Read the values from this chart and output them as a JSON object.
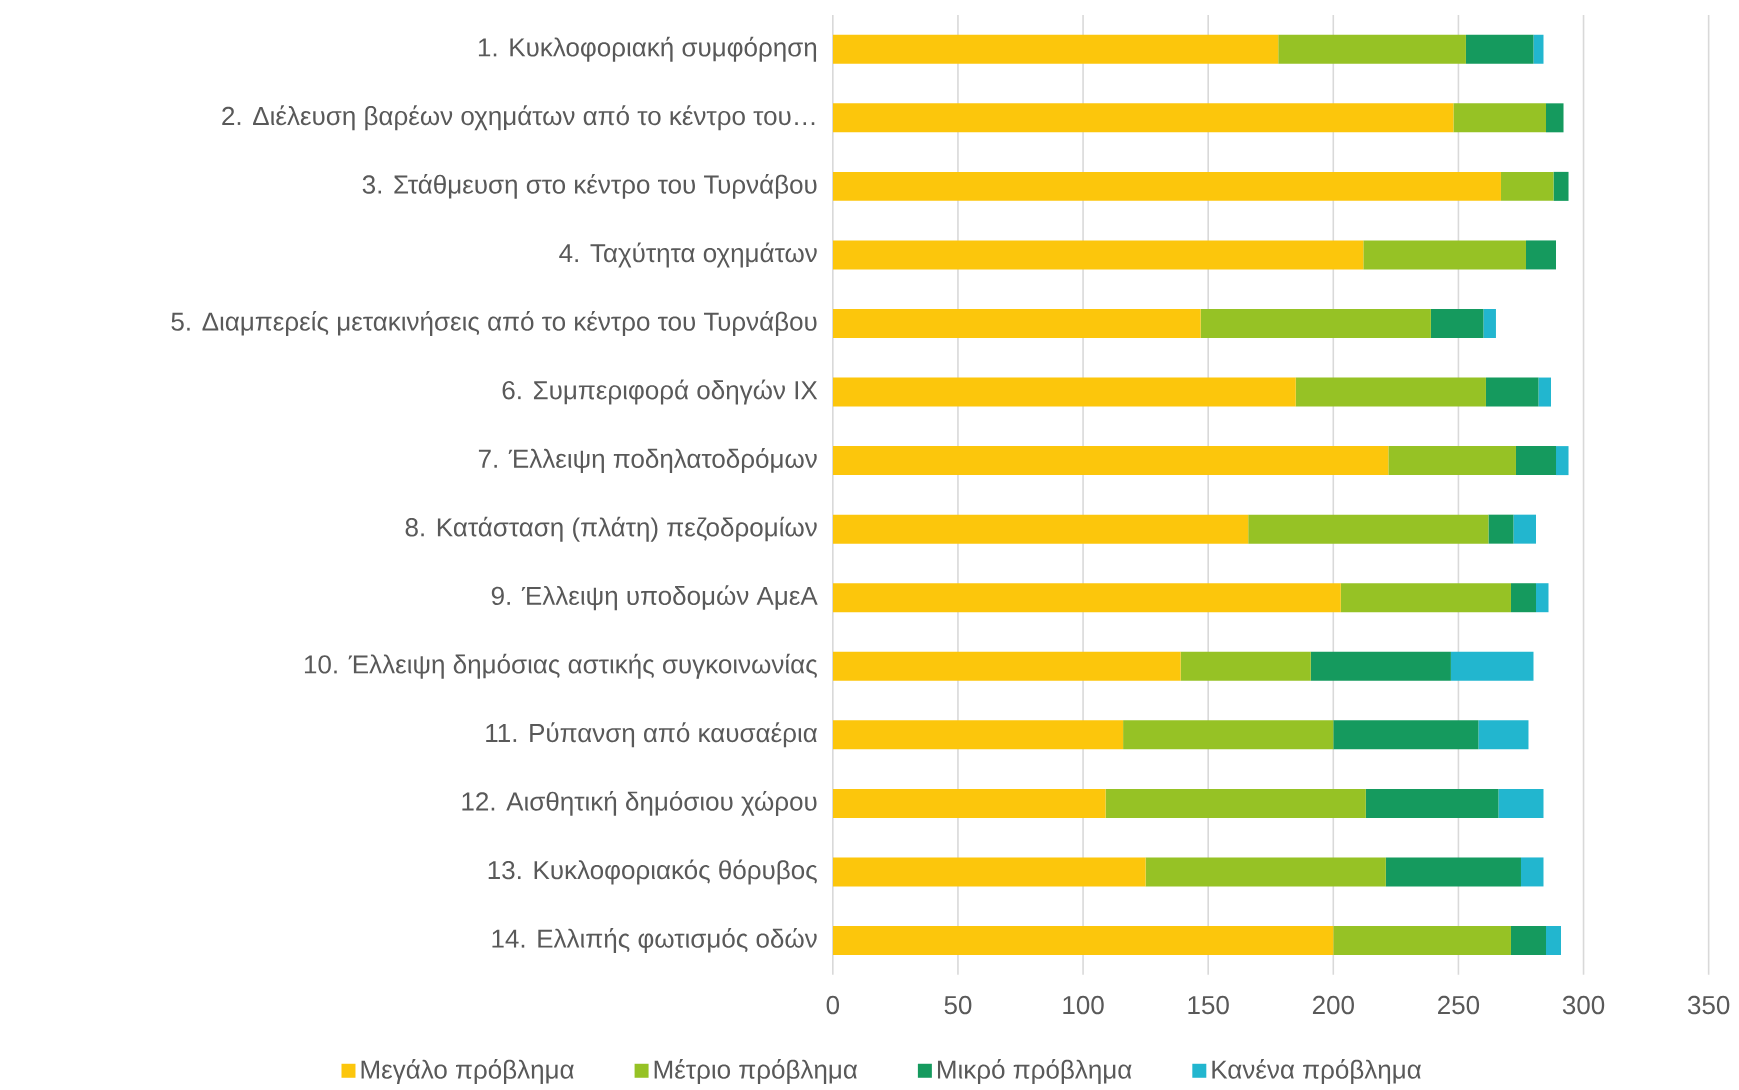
{
  "chart_data": {
    "type": "bar",
    "orientation": "horizontal",
    "stacked": true,
    "categories": [
      "1. Κυκλοφοριακή συμφόρηση",
      "2. Διέλευση βαρέων οχημάτων από το κέντρο του…",
      "3. Στάθμευση στο κέντρο του Τυρνάβου",
      "4. Ταχύτητα οχημάτων",
      "5. Διαμπερείς μετακινήσεις από το κέντρο του Τυρνάβου",
      "6. Συμπεριφορά οδηγών ΙΧ",
      "7.  Έλλειψη ποδηλατοδρόμων",
      "8. Κατάσταση (πλάτη) πεζοδρομίων",
      "9.  Έλλειψη υποδομών ΑμεΑ",
      "10. Έλλειψη δημόσιας αστικής συγκοινωνίας",
      "11. Ρύπανση από καυσαέρια",
      "12. Αισθητική δημόσιου χώρου",
      "13. Κυκλοφοριακός θόρυβος",
      "14. Ελλιπής φωτισμός οδών"
    ],
    "series": [
      {
        "name": "Μεγάλο πρόβλημα",
        "color": "#fcc60c",
        "values": [
          178,
          248,
          267,
          212,
          147,
          185,
          222,
          166,
          203,
          139,
          116,
          109,
          125,
          200
        ]
      },
      {
        "name": "Μέτριο πρόβλημα",
        "color": "#96c225",
        "values": [
          75,
          37,
          21,
          65,
          92,
          76,
          51,
          96,
          68,
          52,
          84,
          104,
          96,
          71
        ]
      },
      {
        "name": "Μικρό πρόβλημα",
        "color": "#159a5e",
        "values": [
          27,
          7,
          6,
          12,
          21,
          21,
          16,
          10,
          10,
          56,
          58,
          53,
          54,
          14
        ]
      },
      {
        "name": "Κανένα πρόβλημα",
        "color": "#22b6cf",
        "values": [
          4,
          0,
          0,
          0,
          5,
          5,
          5,
          9,
          5,
          33,
          20,
          18,
          9,
          6
        ]
      }
    ],
    "xlim": [
      0,
      350
    ],
    "xticks": [
      0,
      50,
      100,
      150,
      200,
      250,
      300,
      350
    ],
    "grid": "x",
    "legend": "bottom"
  }
}
